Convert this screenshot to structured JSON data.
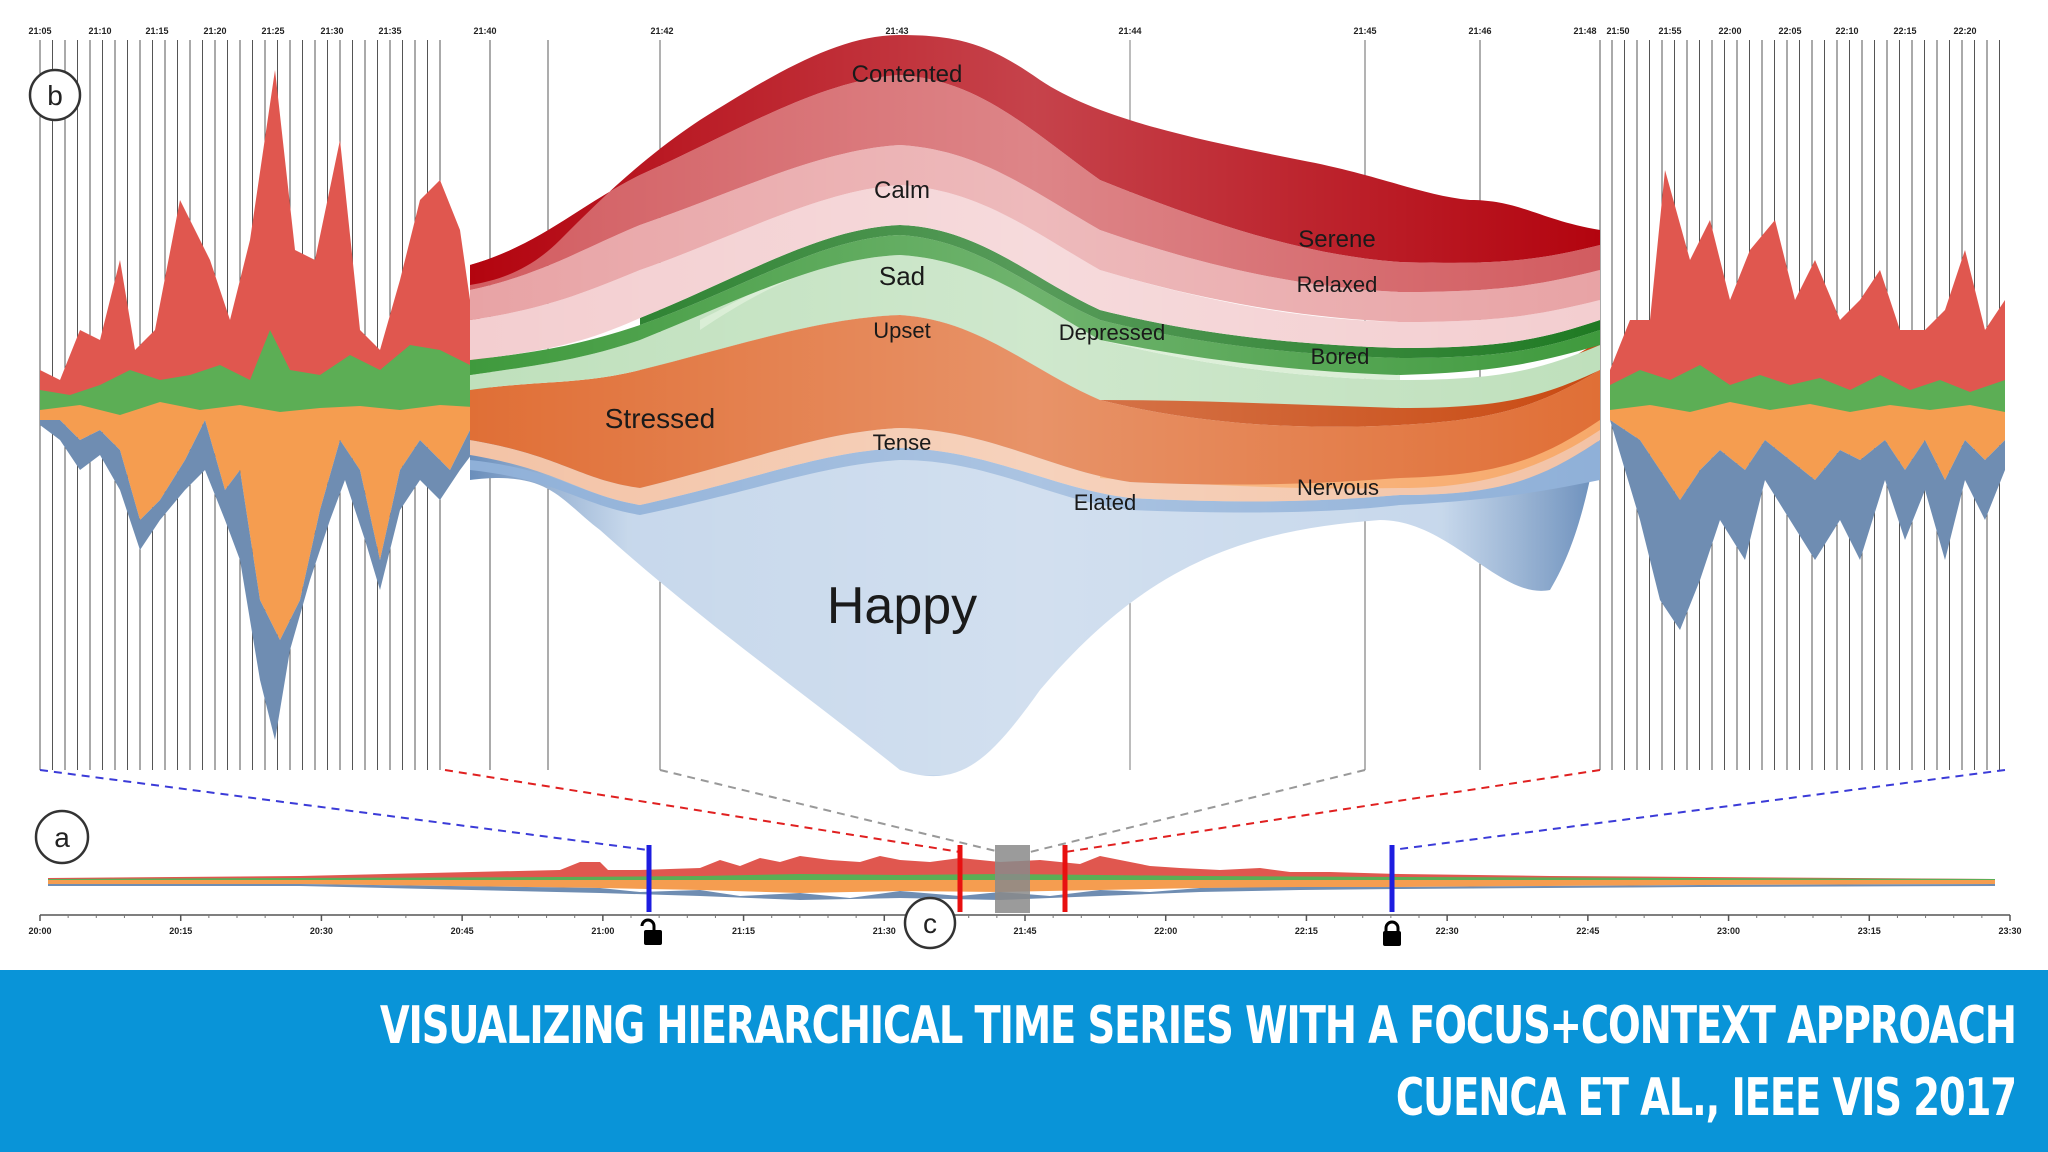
{
  "chart_data": {
    "type": "area",
    "title": "",
    "focus_view": {
      "marker": "b",
      "time_ticks": [
        "21:05",
        "21:10",
        "21:15",
        "21:20",
        "21:25",
        "21:30",
        "21:35",
        "21:40",
        "21:42",
        "21:43",
        "21:44",
        "21:45",
        "21:46",
        "21:48",
        "21:50",
        "21:55",
        "22:00",
        "22:05",
        "22:10",
        "22:15",
        "22:20"
      ],
      "emotion_labels": [
        "Contented",
        "Calm",
        "Sad",
        "Upset",
        "Stressed",
        "Tense",
        "Depressed",
        "Elated",
        "Serene",
        "Relaxed",
        "Bored",
        "Nervous",
        "Happy"
      ],
      "groups": [
        {
          "name": "red",
          "color": "#c0141c"
        },
        {
          "name": "green",
          "color": "#44a244"
        },
        {
          "name": "orange",
          "color": "#e8692a"
        },
        {
          "name": "blue",
          "color": "#6a8ebb"
        }
      ]
    },
    "context_view": {
      "marker": "a",
      "time_ticks": [
        "20:00",
        "20:15",
        "20:30",
        "20:45",
        "21:00",
        "21:15",
        "21:30",
        "21:45",
        "22:00",
        "22:15",
        "22:30",
        "22:45",
        "23:00",
        "23:15",
        "23:30"
      ],
      "lens_marker": "c",
      "lock_icons": [
        "unlock-icon",
        "lock-icon"
      ]
    }
  },
  "banner": {
    "title": "VISUALIZING HIERARCHICAL TIME SERIES WITH A FOCUS+CONTEXT APPROACH",
    "citation": "CUENCA ET AL., IEEE VIS 2017"
  }
}
